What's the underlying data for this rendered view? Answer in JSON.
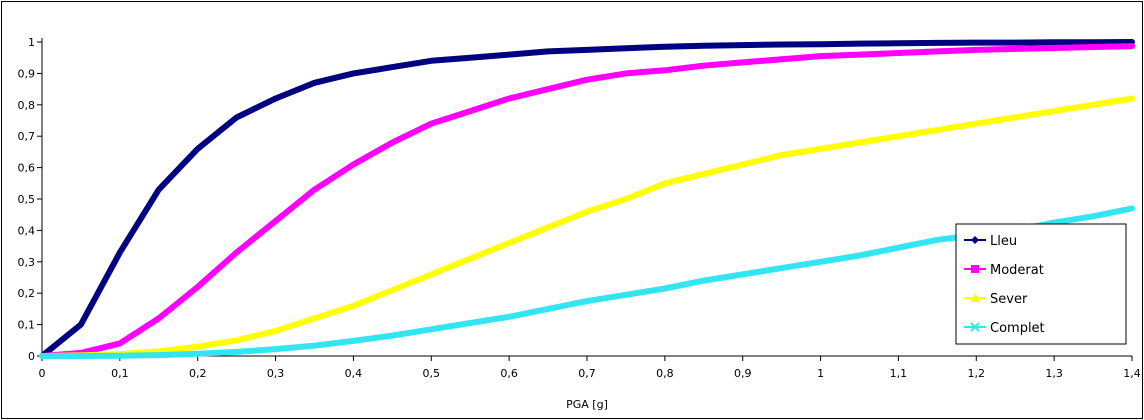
{
  "chart_data": {
    "type": "line",
    "title": "",
    "xlabel": "PGA [g]",
    "ylabel": "",
    "xlim": [
      0,
      1.4
    ],
    "ylim": [
      0,
      1
    ],
    "x_ticks": [
      "0",
      "0,1",
      "0,2",
      "0,3",
      "0,4",
      "0,5",
      "0,6",
      "0,7",
      "0,8",
      "0,9",
      "1",
      "1,1",
      "1,2",
      "1,3",
      "1,4"
    ],
    "y_ticks": [
      "0",
      "0,1",
      "0,2",
      "0,3",
      "0,4",
      "0,5",
      "0,6",
      "0,7",
      "0,8",
      "0,9",
      "1"
    ],
    "grid": false,
    "legend_position": "bottom-right",
    "x": [
      0,
      0.05,
      0.1,
      0.15,
      0.2,
      0.25,
      0.3,
      0.35,
      0.4,
      0.45,
      0.5,
      0.55,
      0.6,
      0.65,
      0.7,
      0.75,
      0.8,
      0.85,
      0.9,
      0.95,
      1.0,
      1.05,
      1.1,
      1.15,
      1.2,
      1.25,
      1.3,
      1.35,
      1.4
    ],
    "series": [
      {
        "name": "Lleu",
        "color": "#000080",
        "marker": "diamond",
        "values": [
          0,
          0.1,
          0.33,
          0.53,
          0.66,
          0.76,
          0.82,
          0.87,
          0.9,
          0.92,
          0.94,
          0.95,
          0.96,
          0.97,
          0.975,
          0.98,
          0.985,
          0.988,
          0.99,
          0.992,
          0.993,
          0.995,
          0.996,
          0.997,
          0.998,
          0.998,
          0.999,
          0.999,
          1.0
        ]
      },
      {
        "name": "Moderat",
        "color": "#FF00FF",
        "marker": "square",
        "values": [
          0,
          0.01,
          0.04,
          0.12,
          0.22,
          0.33,
          0.43,
          0.53,
          0.61,
          0.68,
          0.74,
          0.78,
          0.82,
          0.85,
          0.88,
          0.9,
          0.91,
          0.925,
          0.935,
          0.945,
          0.955,
          0.96,
          0.965,
          0.97,
          0.975,
          0.978,
          0.981,
          0.984,
          0.987
        ]
      },
      {
        "name": "Sever",
        "color": "#FFFF00",
        "marker": "triangle",
        "values": [
          0,
          0.002,
          0.006,
          0.015,
          0.03,
          0.05,
          0.08,
          0.12,
          0.16,
          0.21,
          0.26,
          0.31,
          0.36,
          0.41,
          0.46,
          0.5,
          0.55,
          0.58,
          0.61,
          0.64,
          0.66,
          0.68,
          0.7,
          0.72,
          0.74,
          0.76,
          0.78,
          0.8,
          0.82
        ]
      },
      {
        "name": "Complet",
        "color": "#33E5F0",
        "marker": "x",
        "values": [
          0,
          0.0,
          0.001,
          0.003,
          0.007,
          0.013,
          0.022,
          0.033,
          0.048,
          0.065,
          0.085,
          0.105,
          0.125,
          0.15,
          0.175,
          0.195,
          0.215,
          0.24,
          0.26,
          0.28,
          0.3,
          0.32,
          0.345,
          0.37,
          0.385,
          0.4,
          0.425,
          0.445,
          0.47
        ]
      }
    ]
  }
}
